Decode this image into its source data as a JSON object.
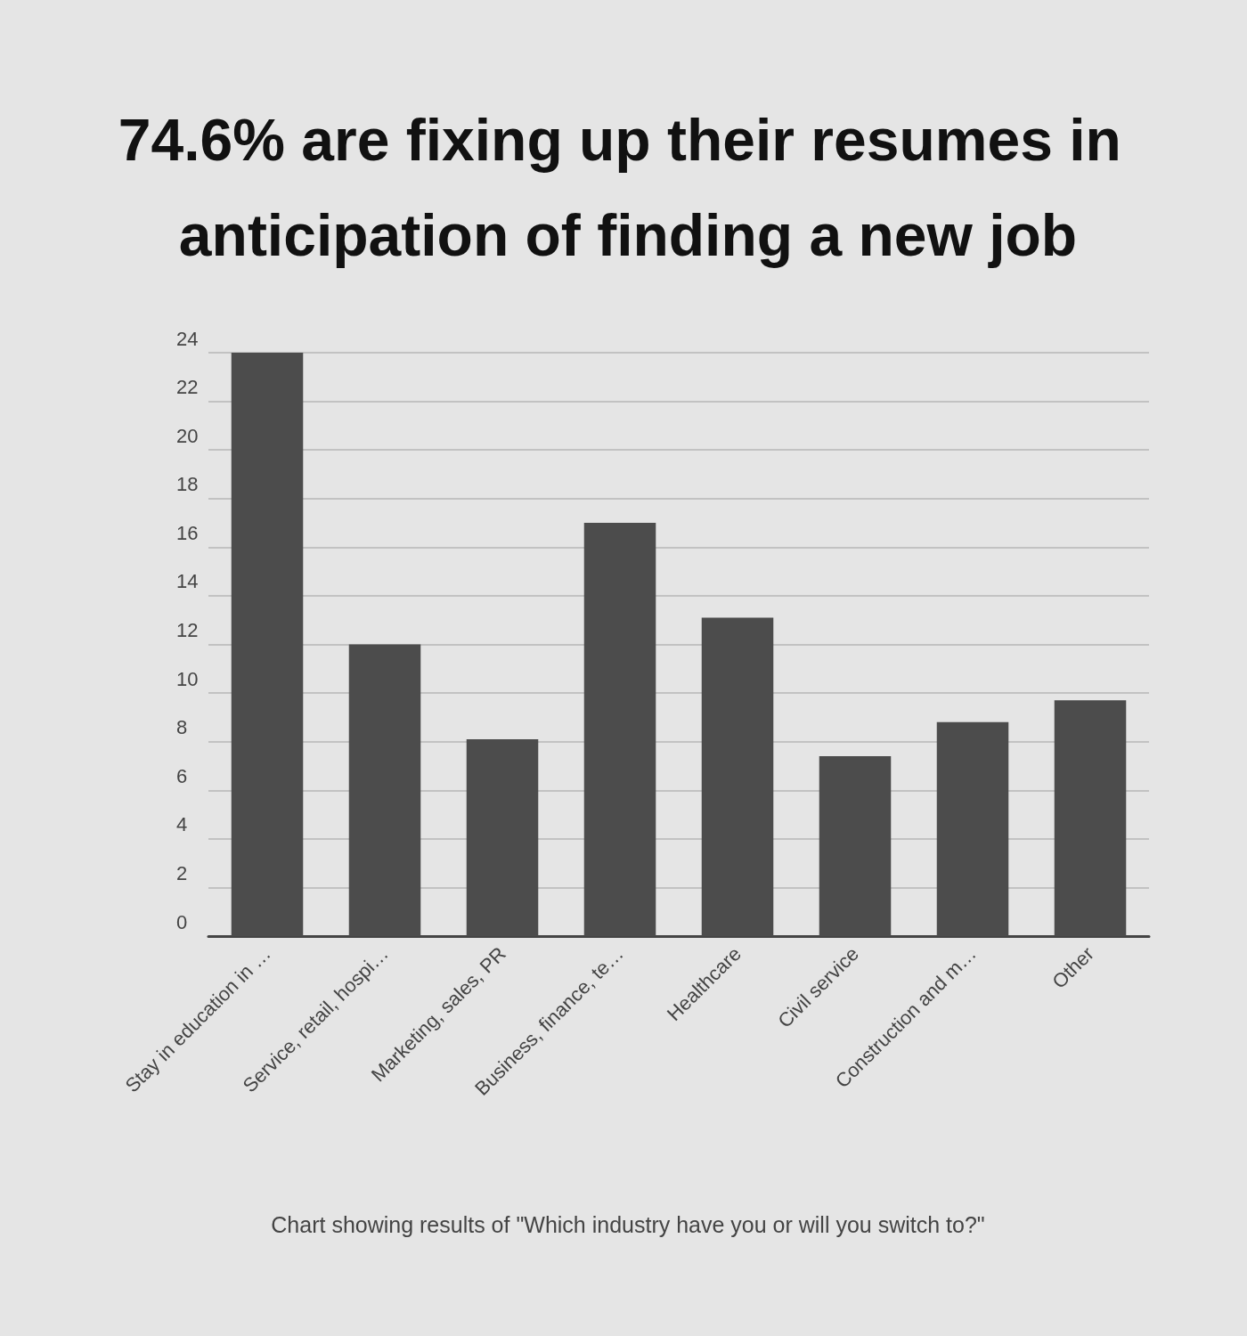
{
  "chart_data": {
    "type": "bar",
    "title": "74.6% are fixing up their resumes in anticipation of finding a new job",
    "categories": [
      "Stay in education in …",
      "Service, retail, hospi…",
      "Marketing, sales, PR",
      "Business, finance, te…",
      "Healthcare",
      "Civil service",
      "Construction and m…",
      "Other"
    ],
    "values": [
      24,
      12,
      8.1,
      17,
      13.1,
      7.4,
      8.8,
      9.7
    ],
    "color": "#4c4c4c",
    "ylim": [
      0,
      24
    ],
    "yticks": [
      0,
      2,
      4,
      6,
      8,
      10,
      12,
      14,
      16,
      18,
      20,
      22,
      24
    ],
    "grid": "y",
    "annotations": [
      "Chart showing results of \"Which industry have you or will you switch to?\""
    ]
  }
}
